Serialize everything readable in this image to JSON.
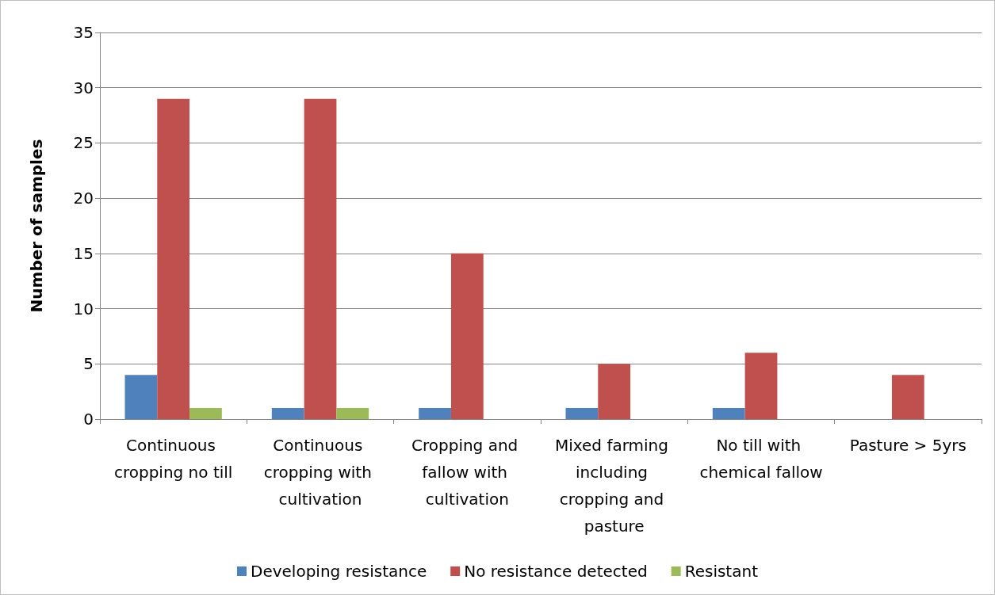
{
  "chart_data": {
    "type": "bar",
    "ylabel": "Number of samples",
    "categories": [
      "Continuous cropping no till",
      "Continuous cropping with cultivation",
      "Cropping and fallow with cultivation",
      "Mixed farming including cropping and pasture",
      "No till with chemical fallow",
      "Pasture > 5yrs"
    ],
    "series": [
      {
        "name": "Developing resistance",
        "color": "#4f81bd",
        "values": [
          4,
          1,
          1,
          1,
          1,
          0
        ]
      },
      {
        "name": "No resistance detected",
        "color": "#c0504d",
        "values": [
          29,
          29,
          15,
          5,
          6,
          4
        ]
      },
      {
        "name": "Resistant",
        "color": "#9bbb59",
        "values": [
          1,
          1,
          0,
          0,
          0,
          0
        ]
      }
    ],
    "ylim": [
      0,
      35
    ],
    "yticks": [
      0,
      5,
      10,
      15,
      20,
      25,
      30,
      35
    ],
    "grid": "y",
    "legend": "bottom"
  }
}
